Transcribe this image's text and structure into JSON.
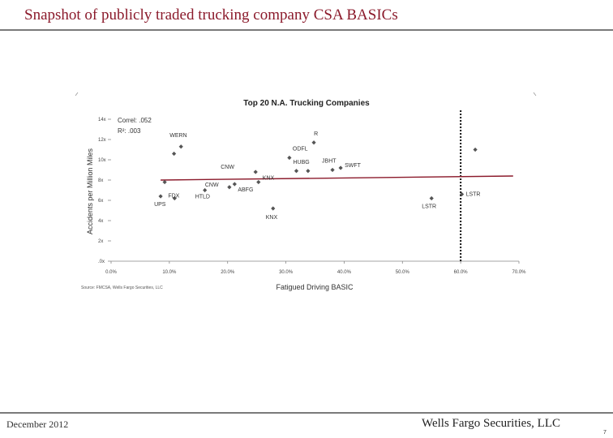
{
  "page": {
    "title": "Snapshot of publicly traded trucking company CSA BASICs",
    "footer_date": "December 2012",
    "footer_brand": "Wells Fargo Securities, LLC",
    "page_number": "7",
    "accent_color": "#8b1a2b"
  },
  "chart_data": {
    "type": "scatter",
    "title": "Top 20 N.A. Trucking Companies",
    "xlabel": "Fatigued Driving BASIC",
    "ylabel": "Accidents per Million Miles",
    "source": "Source: FMCSA, Wells Fargo Securities, LLC",
    "annotations": [
      "Correl: .052",
      "R²: .003"
    ],
    "xlim": [
      0,
      70
    ],
    "ylim": [
      0,
      14
    ],
    "x_ticks": [
      0,
      10,
      20,
      30,
      40,
      50,
      60,
      70
    ],
    "x_tick_labels": [
      "0.0%",
      "10.0%",
      "20.0%",
      "30.0%",
      "40.0%",
      "50.0%",
      "60.0%",
      "70.0%"
    ],
    "y_ticks": [
      0,
      2,
      4,
      6,
      8,
      10,
      12,
      14
    ],
    "y_tick_labels": [
      ".0x",
      "2x",
      "4x",
      "6x",
      "8x",
      "10x",
      "12x",
      "14x"
    ],
    "threshold_line_x": 60,
    "trendline": {
      "x": [
        8.5,
        69
      ],
      "y": [
        8.0,
        8.4
      ]
    },
    "points": [
      {
        "x": 8.5,
        "y": 6.4,
        "label": "UPS"
      },
      {
        "x": 9.2,
        "y": 7.8,
        "label": ""
      },
      {
        "x": 10.8,
        "y": 10.6,
        "label": ""
      },
      {
        "x": 10.9,
        "y": 6.2,
        "label": "FDX"
      },
      {
        "x": 12.0,
        "y": 11.3,
        "label": "WERN"
      },
      {
        "x": 16.1,
        "y": 7.0,
        "label": "HTLD"
      },
      {
        "x": 20.3,
        "y": 7.3,
        "label": "CNW"
      },
      {
        "x": 21.2,
        "y": 7.6,
        "label": "ABFG"
      },
      {
        "x": 24.8,
        "y": 8.8,
        "label": "CNW"
      },
      {
        "x": 25.3,
        "y": 7.8,
        "label": "KNX"
      },
      {
        "x": 27.8,
        "y": 5.2,
        "label": "KNX"
      },
      {
        "x": 30.6,
        "y": 10.2,
        "label": "ODFL"
      },
      {
        "x": 31.8,
        "y": 8.9,
        "label": "HUBG"
      },
      {
        "x": 33.8,
        "y": 8.9,
        "label": ""
      },
      {
        "x": 34.8,
        "y": 11.7,
        "label": "R"
      },
      {
        "x": 38.0,
        "y": 9.0,
        "label": "JBHT"
      },
      {
        "x": 39.4,
        "y": 9.2,
        "label": "SWFT"
      },
      {
        "x": 55.0,
        "y": 6.2,
        "label": "LSTR"
      },
      {
        "x": 60.2,
        "y": 6.6,
        "label": "LSTR"
      },
      {
        "x": 62.5,
        "y": 11.0,
        "label": ""
      }
    ]
  }
}
